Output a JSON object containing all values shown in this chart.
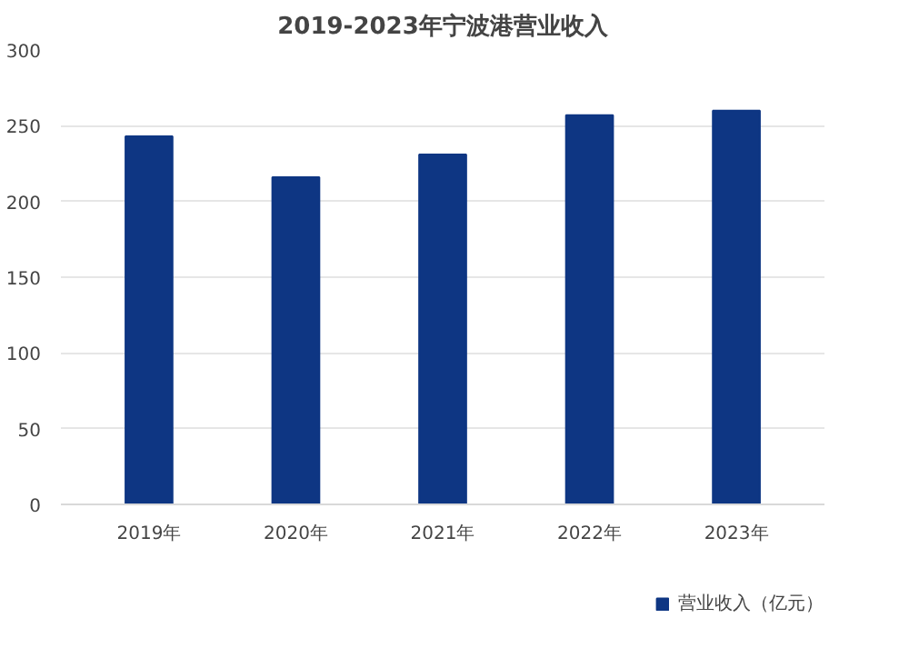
{
  "chart_data": {
    "type": "bar",
    "title": "2019-2023年宁波港营业收入",
    "categories": [
      "2019年",
      "2020年",
      "2021年",
      "2022年",
      "2023年"
    ],
    "series": [
      {
        "name": "营业收入（亿元）",
        "color": "#0e3683",
        "values": [
          243,
          216,
          231,
          257,
          260
        ]
      }
    ],
    "ylim": [
      0,
      300
    ],
    "yticks": [
      0,
      50,
      100,
      150,
      200,
      250,
      300
    ],
    "grid": "y",
    "legend": "bottom"
  }
}
